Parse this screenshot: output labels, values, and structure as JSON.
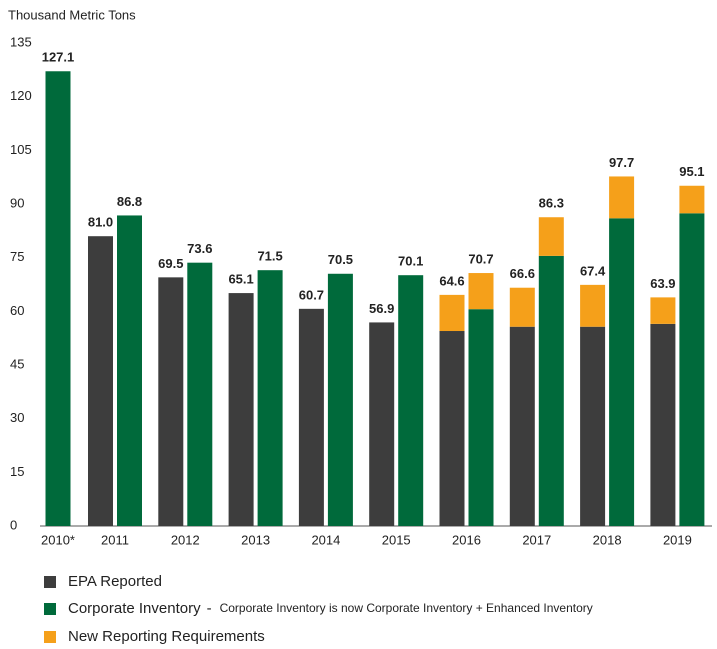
{
  "chart_data": {
    "type": "grouped-stacked-bar",
    "y_axis_label": "Thousand Metric Tons",
    "categories": [
      "2010*",
      "2011",
      "2012",
      "2013",
      "2014",
      "2015",
      "2016",
      "2017",
      "2018",
      "2019"
    ],
    "ylim": [
      0,
      135
    ],
    "yticks": [
      0,
      15,
      30,
      45,
      60,
      75,
      90,
      105,
      120,
      135
    ],
    "series": [
      {
        "name": "EPA Reported",
        "color": "#3d3d3d",
        "bar": 0,
        "values": [
          null,
          81.0,
          69.5,
          65.1,
          60.7,
          56.9,
          54.5,
          55.7,
          55.7,
          56.5
        ]
      },
      {
        "name": "Corporate Inventory",
        "color": "#006a3b",
        "bar": 1,
        "values": [
          127.1,
          86.8,
          73.6,
          71.5,
          70.5,
          70.1,
          60.6,
          75.5,
          86.0,
          87.4
        ]
      },
      {
        "name": "New Reporting Requirements",
        "color": "#f5a01a",
        "bar": [
          0,
          1
        ],
        "values": [
          [
            null,
            null,
            null,
            null,
            null,
            null,
            10.1,
            10.9,
            11.7,
            7.4
          ],
          [
            null,
            null,
            null,
            null,
            null,
            null,
            10.1,
            10.8,
            11.7,
            7.7
          ]
        ]
      }
    ],
    "total_labels": [
      [
        null,
        "81.0",
        "69.5",
        "65.1",
        "60.7",
        "56.9",
        "64.6",
        "66.6",
        "67.4",
        "63.9"
      ],
      [
        "127.1",
        "86.8",
        "73.6",
        "71.5",
        "70.5",
        "70.1",
        "70.7",
        "86.3",
        "97.7",
        "95.1"
      ]
    ],
    "legend_separator": "-",
    "legend_note": "Corporate Inventory is now Corporate Inventory + Enhanced Inventory"
  }
}
